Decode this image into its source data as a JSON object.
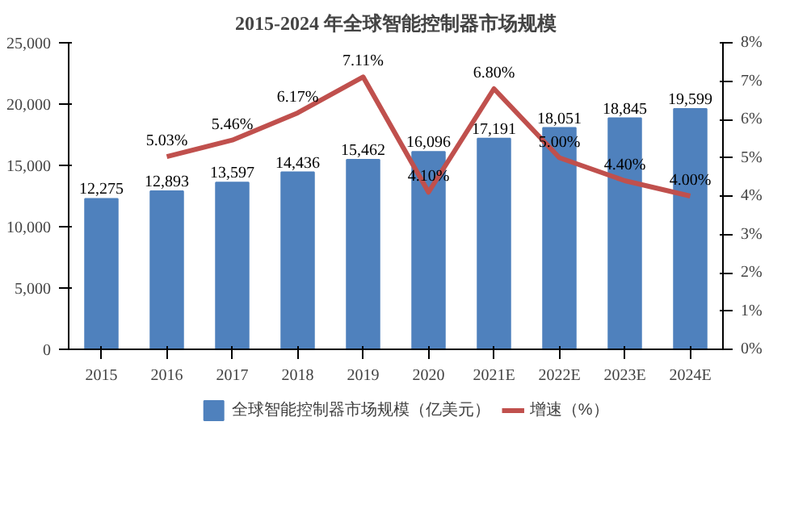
{
  "chart_data": {
    "type": "bar",
    "title": "2015-2024 年全球智能控制器市场规模",
    "categories": [
      "2015",
      "2016",
      "2017",
      "2018",
      "2019",
      "2020",
      "2021E",
      "2022E",
      "2023E",
      "2024E"
    ],
    "series": [
      {
        "name": "全球智能控制器市场规模（亿美元）",
        "color": "#4f81bd",
        "values": [
          12275,
          12893,
          13597,
          14436,
          15462,
          16096,
          17191,
          18051,
          18845,
          19599
        ],
        "value_labels": [
          "12,275",
          "12,893",
          "13,597",
          "14,436",
          "15,462",
          "16,096",
          "17,191",
          "18,051",
          "18,845",
          "19,599"
        ]
      },
      {
        "name": "增速（%）",
        "color": "#c0504d",
        "type": "line",
        "axis": "y2",
        "values": [
          null,
          5.03,
          5.46,
          6.17,
          7.11,
          4.1,
          6.8,
          5.0,
          4.4,
          4.0
        ],
        "value_labels": [
          null,
          "5.03%",
          "5.46%",
          "6.17%",
          "7.11%",
          "4.10%",
          "6.80%",
          "5.00%",
          "4.40%",
          "4.00%"
        ]
      }
    ],
    "ylim": [
      0,
      25000
    ],
    "yticks": [
      0,
      {
        "value": 5000,
        "label": "5,000"
      },
      {
        "value": 10000,
        "label": "10,000"
      },
      {
        "value": 15000,
        "label": "15,000"
      },
      {
        "value": 20000,
        "label": "20,000"
      },
      {
        "value": 25000,
        "label": "25,000"
      }
    ],
    "y2lim": [
      0,
      8
    ],
    "y2ticks": [
      {
        "value": 0,
        "label": "0%"
      },
      {
        "value": 1,
        "label": "1%"
      },
      {
        "value": 2,
        "label": "2%"
      },
      {
        "value": 3,
        "label": "3%"
      },
      {
        "value": 4,
        "label": "4%"
      },
      {
        "value": 5,
        "label": "5%"
      },
      {
        "value": 6,
        "label": "6%"
      },
      {
        "value": 7,
        "label": "7%"
      },
      {
        "value": 8,
        "label": "8%"
      }
    ],
    "grid": false,
    "legend": "bottom",
    "marker": "none",
    "line_style": "solid"
  }
}
